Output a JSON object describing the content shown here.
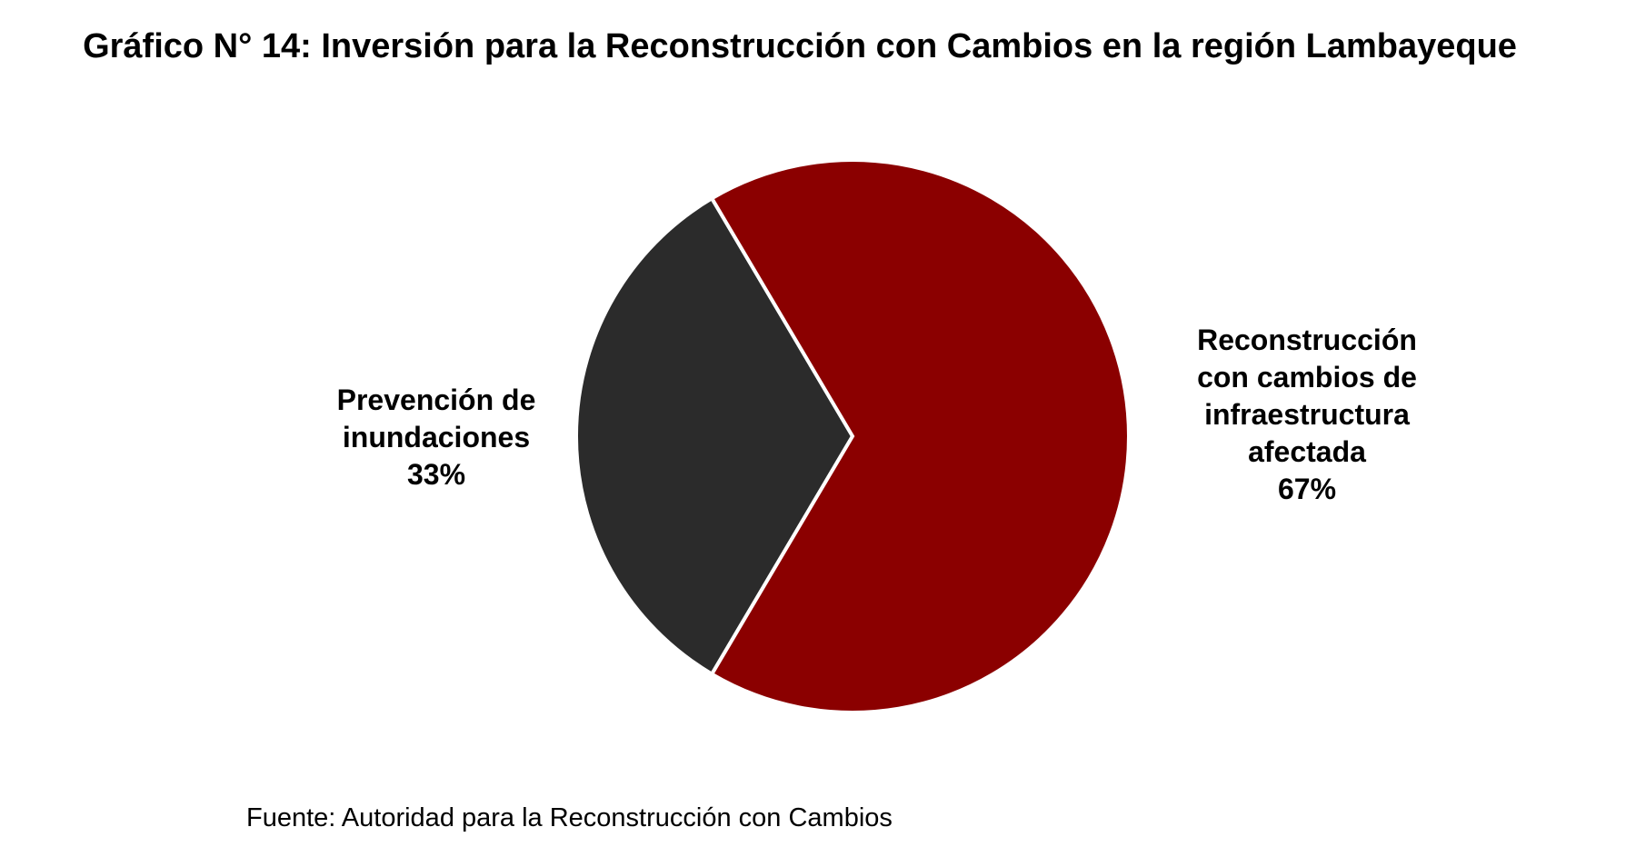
{
  "chart_data": {
    "type": "pie",
    "title": "Gráfico N° 14: Inversión para la Reconstrucción con Cambios en la región Lambayeque",
    "slices": [
      {
        "label_lines": [
          "Prevención de",
          "inundaciones"
        ],
        "percent_label": "33%",
        "value": 33,
        "color": "#2b2b2b"
      },
      {
        "label_lines": [
          "Reconstrucción",
          "con cambios de",
          "infraestructura",
          "afectada"
        ],
        "percent_label": "67%",
        "value": 67,
        "color": "#8b0000"
      }
    ],
    "slice_border_color": "#ffffff",
    "legend": "none"
  },
  "source": "Fuente: Autoridad para la Reconstrucción con Cambios"
}
